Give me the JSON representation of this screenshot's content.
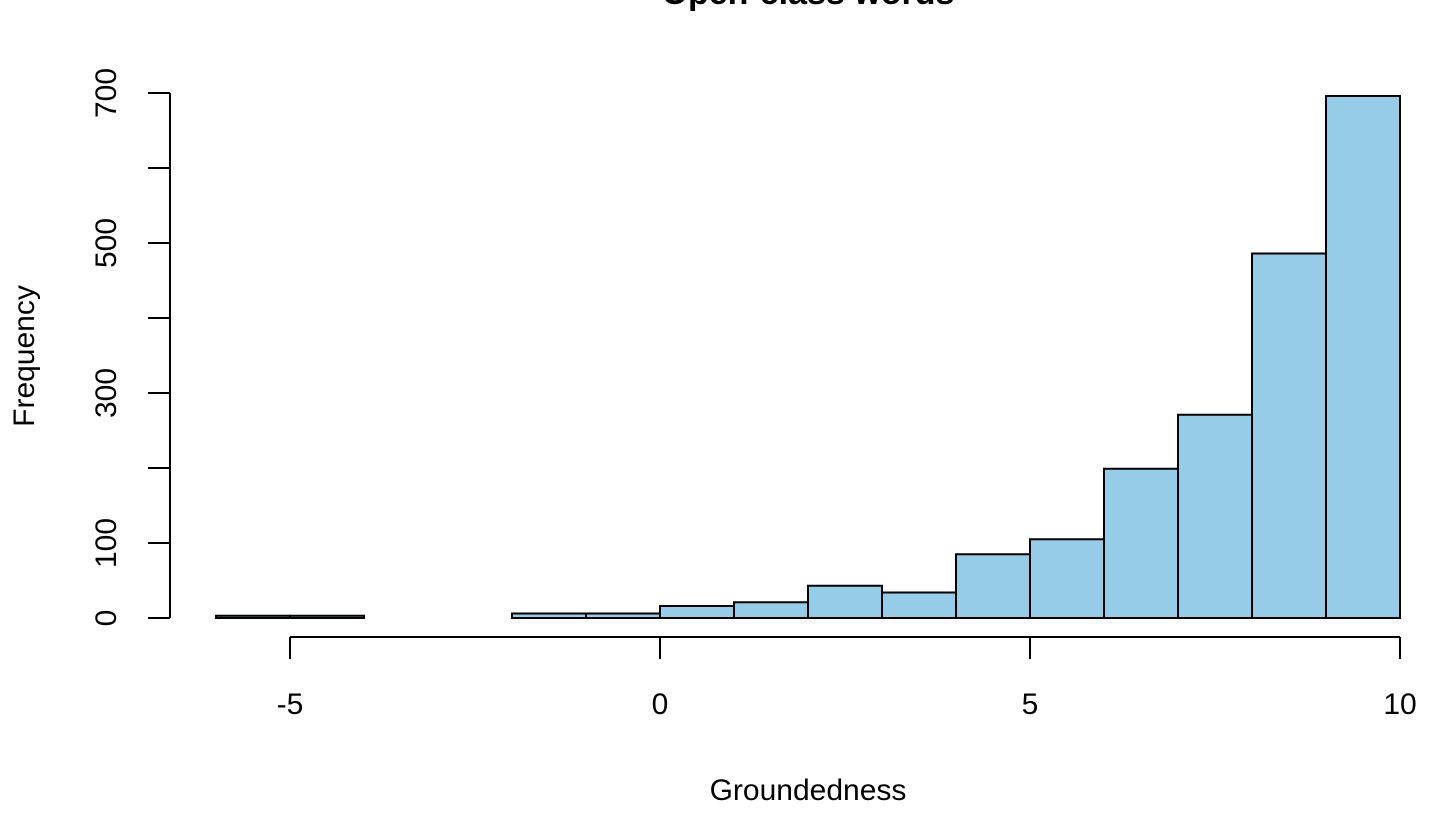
{
  "chart_data": {
    "type": "bar",
    "subtype": "histogram",
    "title": "Open-class words",
    "xlabel": "Groundedness",
    "ylabel": "Frequency",
    "bin_width": 1,
    "bins": [
      {
        "x0": -6,
        "x1": -5,
        "count": 3
      },
      {
        "x0": -5,
        "x1": -4,
        "count": 3
      },
      {
        "x0": -4,
        "x1": -3,
        "count": 0
      },
      {
        "x0": -3,
        "x1": -2,
        "count": 0
      },
      {
        "x0": -2,
        "x1": -1,
        "count": 6
      },
      {
        "x0": -1,
        "x1": 0,
        "count": 6
      },
      {
        "x0": 0,
        "x1": 1,
        "count": 16
      },
      {
        "x0": 1,
        "x1": 2,
        "count": 21
      },
      {
        "x0": 2,
        "x1": 3,
        "count": 43
      },
      {
        "x0": 3,
        "x1": 4,
        "count": 34
      },
      {
        "x0": 4,
        "x1": 5,
        "count": 85
      },
      {
        "x0": 5,
        "x1": 6,
        "count": 105
      },
      {
        "x0": 6,
        "x1": 7,
        "count": 199
      },
      {
        "x0": 7,
        "x1": 8,
        "count": 271
      },
      {
        "x0": 8,
        "x1": 9,
        "count": 486
      },
      {
        "x0": 9,
        "x1": 10,
        "count": 696
      }
    ],
    "xlim": [
      -6,
      10
    ],
    "ylim": [
      0,
      700
    ],
    "x_ticks": [
      -5,
      0,
      5,
      10
    ],
    "x_tick_labels": [
      "-5",
      "0",
      "5",
      "10"
    ],
    "y_ticks": [
      0,
      100,
      200,
      300,
      400,
      500,
      600,
      700
    ],
    "y_tick_labels": [
      "0",
      "100",
      "",
      "300",
      "",
      "500",
      "",
      "700"
    ],
    "grid": false,
    "legend": "none",
    "bar_color": "#97cce8",
    "bar_stroke": "#000000"
  }
}
